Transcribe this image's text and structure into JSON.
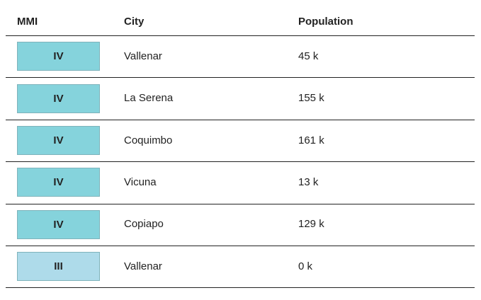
{
  "table": {
    "headers": [
      "MMI",
      "City",
      "Population"
    ],
    "rows": [
      {
        "mmi": "IV",
        "city": "Vallenar",
        "population": "45 k",
        "color": "#85d3dc"
      },
      {
        "mmi": "IV",
        "city": "La Serena",
        "population": "155 k",
        "color": "#85d3dc"
      },
      {
        "mmi": "IV",
        "city": "Coquimbo",
        "population": "161 k",
        "color": "#85d3dc"
      },
      {
        "mmi": "IV",
        "city": "Vicuna",
        "population": "13 k",
        "color": "#85d3dc"
      },
      {
        "mmi": "IV",
        "city": "Copiapo",
        "population": "129 k",
        "color": "#85d3dc"
      },
      {
        "mmi": "III",
        "city": "Vallenar",
        "population": "0 k",
        "color": "#aedbea"
      }
    ]
  }
}
